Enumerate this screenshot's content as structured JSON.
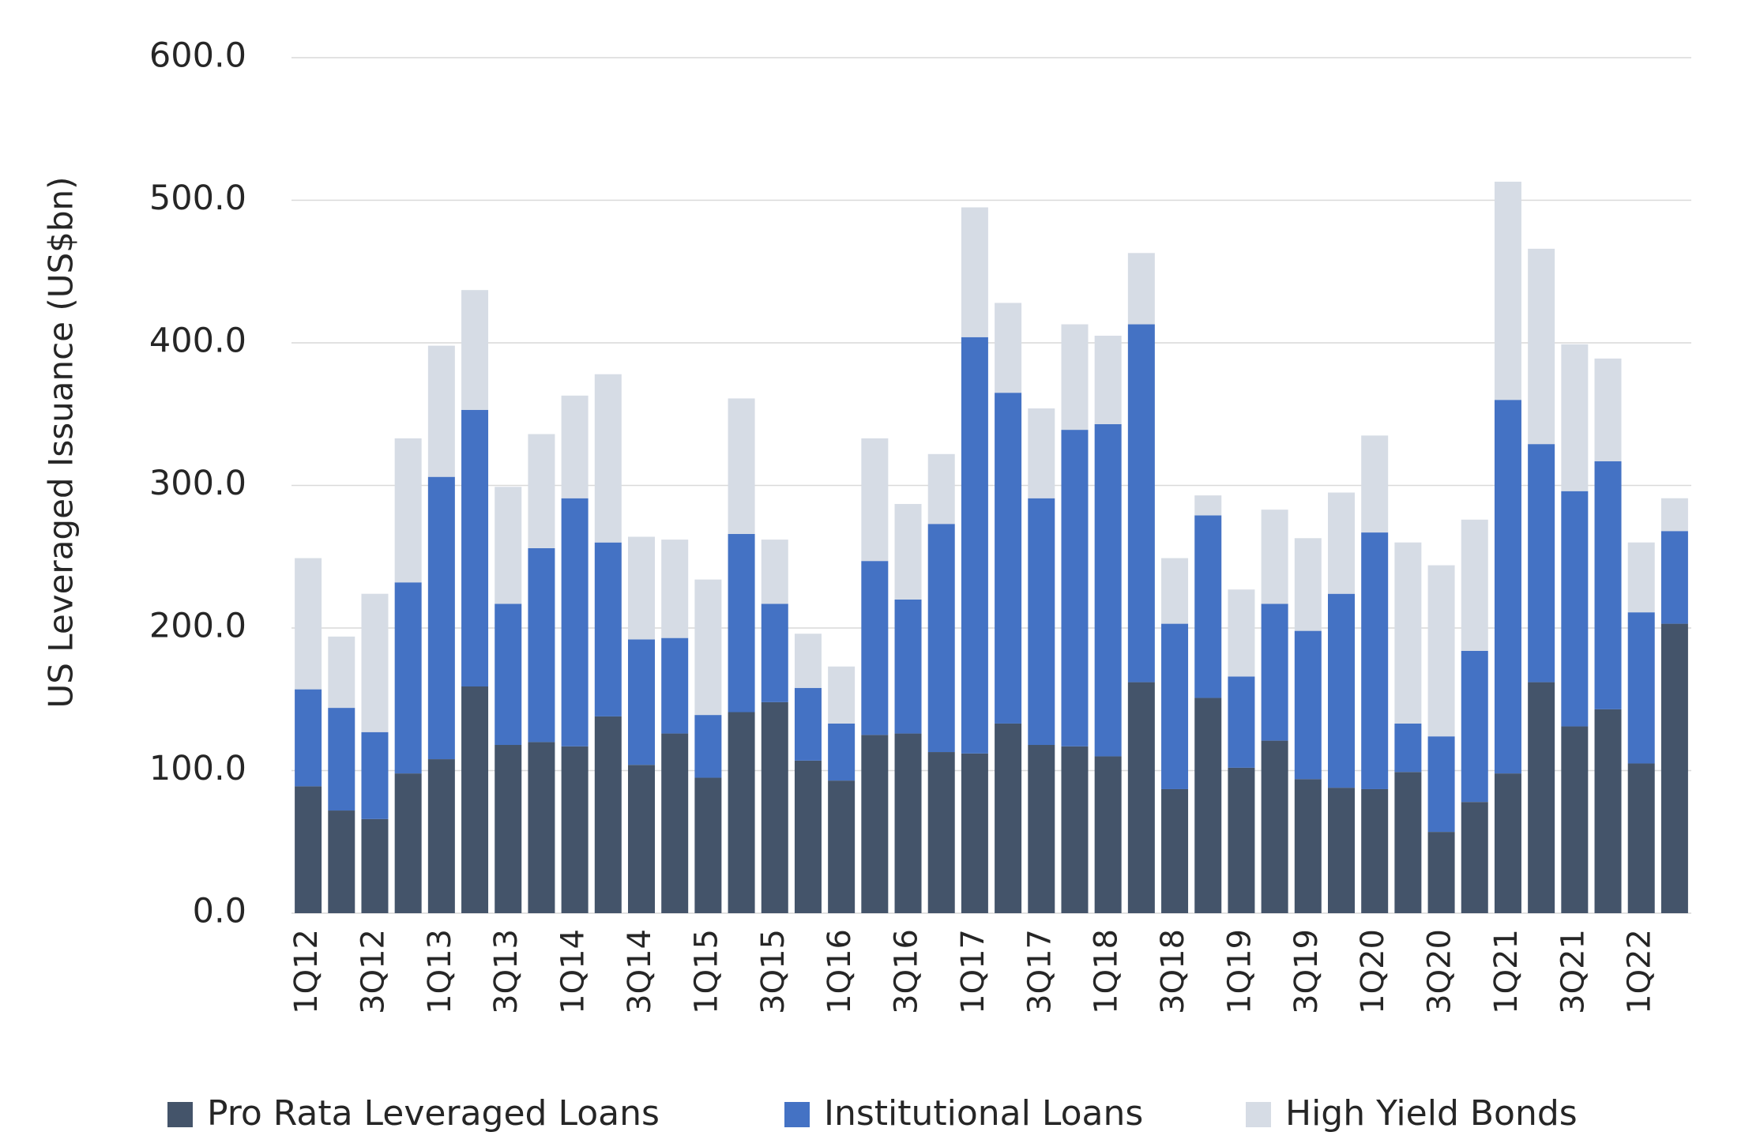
{
  "chart_data": {
    "type": "bar",
    "stacked": true,
    "y_label": "US Leveraged Issuance (US$bn)",
    "categories": [
      "1Q12",
      null,
      "3Q12",
      null,
      "1Q13",
      null,
      "3Q13",
      null,
      "1Q14",
      null,
      "3Q14",
      null,
      "1Q15",
      null,
      "3Q15",
      null,
      "1Q16",
      null,
      "3Q16",
      null,
      "1Q17",
      null,
      "3Q17",
      null,
      "1Q18",
      null,
      "3Q18",
      null,
      "1Q19",
      null,
      "3Q19",
      null,
      "1Q20",
      null,
      "3Q20",
      null,
      "1Q21",
      null,
      "3Q21",
      null,
      "1Q22",
      null
    ],
    "series": [
      {
        "name": "Pro Rata Leveraged Loans",
        "color": "#44546a",
        "values": [
          89,
          72,
          66,
          98,
          108,
          159,
          118,
          120,
          117,
          138,
          104,
          126,
          95,
          141,
          148,
          107,
          93,
          125,
          126,
          113,
          112,
          133,
          118,
          117,
          110,
          162,
          87,
          151,
          102,
          121,
          94,
          88,
          87,
          99,
          57,
          78,
          98,
          162,
          131,
          143,
          105,
          203
        ]
      },
      {
        "name": "Institutional Loans",
        "color": "#4472c4",
        "values": [
          68,
          72,
          61,
          134,
          198,
          194,
          99,
          136,
          174,
          122,
          88,
          67,
          44,
          125,
          69,
          51,
          40,
          122,
          94,
          160,
          292,
          232,
          173,
          222,
          233,
          251,
          116,
          128,
          64,
          96,
          104,
          136,
          180,
          34,
          67,
          106,
          262,
          167,
          165,
          174,
          106,
          65
        ]
      },
      {
        "name": "High Yield Bonds",
        "color": "#d6dce5",
        "values": [
          92,
          50,
          97,
          101,
          92,
          84,
          82,
          80,
          72,
          118,
          72,
          69,
          95,
          95,
          45,
          38,
          40,
          86,
          67,
          49,
          91,
          63,
          63,
          74,
          62,
          50,
          46,
          14,
          61,
          66,
          65,
          71,
          68,
          127,
          120,
          92,
          153,
          137,
          103,
          72,
          49,
          23
        ]
      }
    ],
    "ylim": [
      0,
      600
    ],
    "yticks": [
      {
        "value": 0,
        "label": "0.0"
      },
      {
        "value": 100,
        "label": "100.0"
      },
      {
        "value": 200,
        "label": "200.0"
      },
      {
        "value": 300,
        "label": "300.0"
      },
      {
        "value": 400,
        "label": "400.0"
      },
      {
        "value": 500,
        "label": "500.0"
      },
      {
        "value": 600,
        "label": "600.0"
      }
    ],
    "grid": true,
    "legend": "bottom"
  }
}
